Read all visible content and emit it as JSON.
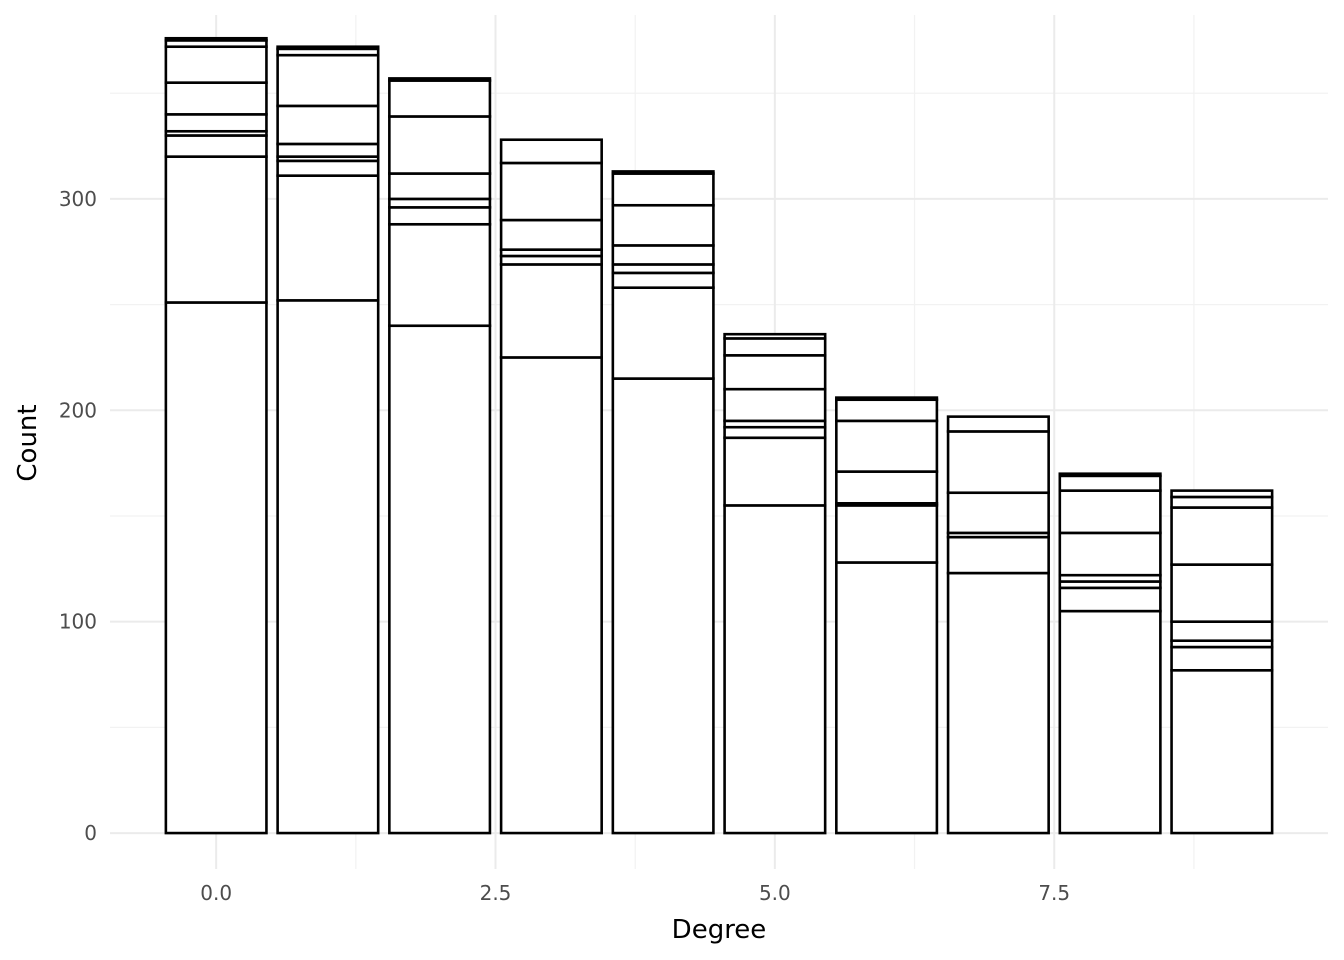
{
  "chart_data": {
    "type": "bar",
    "stacked": true,
    "title": "",
    "xlabel": "Degree",
    "ylabel": "Count",
    "xlim": [
      -0.95,
      9.95
    ],
    "ylim": [
      -17,
      387
    ],
    "x_ticks": [
      0.0,
      2.5,
      5.0,
      7.5
    ],
    "x_tick_labels": [
      "0.0",
      "2.5",
      "5.0",
      "7.5"
    ],
    "y_ticks": [
      0,
      100,
      200,
      300
    ],
    "y_tick_labels": [
      "0",
      "100",
      "200",
      "300"
    ],
    "grid": true,
    "legend": "none",
    "bar_fill": "#ffffff",
    "bar_outline": "#000000",
    "x": [
      0,
      1,
      2,
      3,
      4,
      5,
      6,
      7,
      8,
      9
    ],
    "totals": [
      376,
      372,
      357,
      328,
      313,
      236,
      206,
      197,
      170,
      162
    ],
    "segment_boundaries": [
      [
        251,
        320,
        330,
        332,
        340,
        355,
        372,
        375
      ],
      [
        252,
        311,
        318,
        320,
        326,
        344,
        368,
        371
      ],
      [
        240,
        288,
        296,
        300,
        312,
        339,
        356
      ],
      [
        225,
        269,
        273,
        276,
        290,
        317
      ],
      [
        215,
        258,
        265,
        269,
        278,
        297,
        312
      ],
      [
        155,
        187,
        192,
        195,
        210,
        226,
        234
      ],
      [
        128,
        155,
        156,
        171,
        195,
        205
      ],
      [
        123,
        140,
        142,
        161,
        190
      ],
      [
        105,
        116,
        119,
        122,
        142,
        162,
        169
      ],
      [
        77,
        88,
        91,
        100,
        127,
        154,
        159
      ]
    ]
  }
}
